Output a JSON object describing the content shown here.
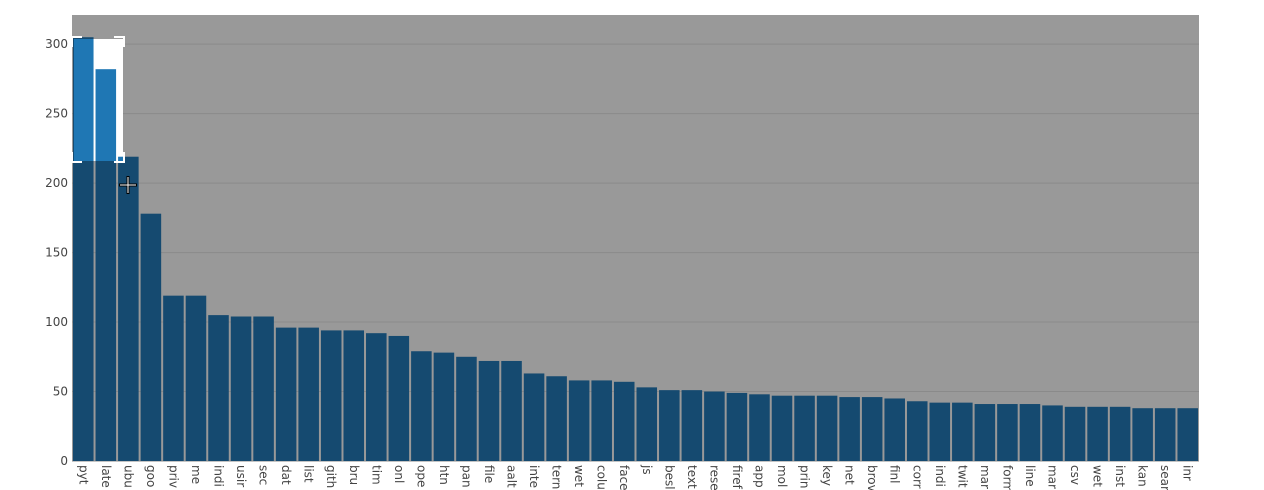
{
  "chart_data": {
    "type": "bar",
    "categories": [
      "pyt",
      "late",
      "ubu",
      "goo",
      "priv",
      "me",
      "indi",
      "usir",
      "sec",
      "dat",
      "list",
      "gith",
      "bru",
      "tim",
      "onl",
      "ope",
      "htn",
      "pan",
      "file",
      "aalt",
      "inte",
      "tern",
      "wet",
      "colu",
      "face",
      "js",
      "besl",
      "text",
      "rese",
      "firef",
      "app",
      "mol",
      "prin",
      "key",
      "net",
      "brov",
      "finl",
      "corr",
      "indi",
      "twit",
      "mar",
      "form",
      "line",
      "mar",
      "csv",
      "wet",
      "inst",
      "kan",
      "sear",
      "inr"
    ],
    "values": [
      305,
      282,
      219,
      178,
      119,
      119,
      105,
      104,
      104,
      96,
      96,
      94,
      94,
      92,
      90,
      79,
      78,
      75,
      72,
      72,
      63,
      61,
      58,
      58,
      57,
      53,
      51,
      51,
      50,
      49,
      48,
      47,
      47,
      47,
      46,
      46,
      45,
      43,
      42,
      42,
      41,
      41,
      41,
      40,
      39,
      39,
      39,
      38,
      38,
      38
    ],
    "color": "#154a70",
    "selected_color": "#1f77b4",
    "ylim": [
      0,
      321
    ],
    "yticks": [
      0,
      50,
      100,
      150,
      200,
      250,
      300
    ],
    "grid": true
  }
}
